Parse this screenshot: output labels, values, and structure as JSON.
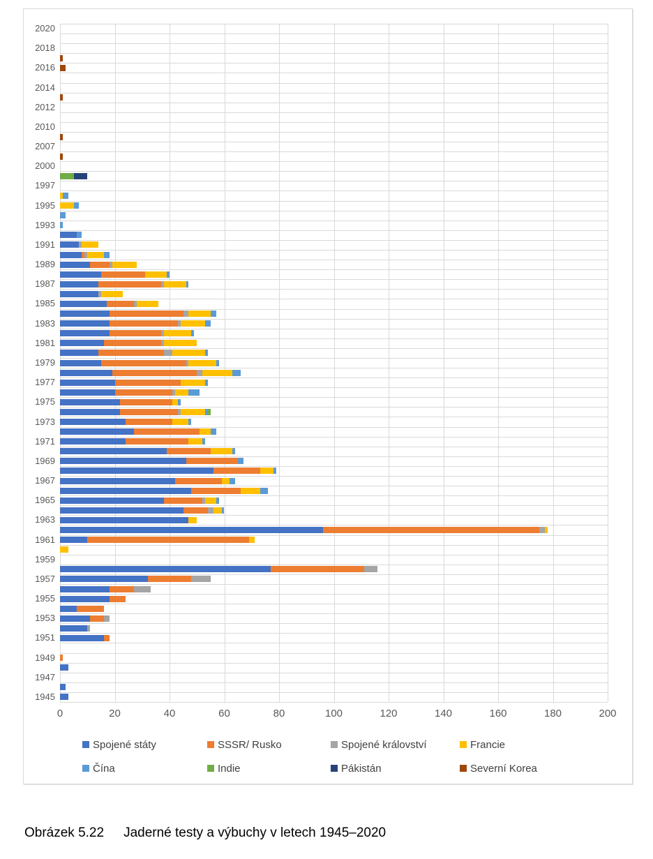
{
  "figure": {
    "caption_label": "Obrázek 5.22",
    "caption_text": "Jaderné testy a výbuchy v letech 1945–2020"
  },
  "colors": {
    "gridline": "#d9d9d9",
    "axis_text": "#595959",
    "legend_text": "#404040"
  },
  "chart_data": {
    "type": "bar",
    "orientation": "horizontal",
    "stacked": true,
    "title": "",
    "xlabel": "",
    "ylabel": "",
    "xlim": [
      0,
      200
    ],
    "x_ticks": [
      0,
      20,
      40,
      60,
      80,
      100,
      120,
      140,
      160,
      180,
      200
    ],
    "grid": true,
    "legend_position": "bottom",
    "y_tick_labels": [
      "2020",
      "2018",
      "2016",
      "2014",
      "2012",
      "2010",
      "2007",
      "2000",
      "1997",
      "1995",
      "1993",
      "1991",
      "1989",
      "1987",
      "1985",
      "1983",
      "1981",
      "1979",
      "1977",
      "1975",
      "1973",
      "1971",
      "1969",
      "1967",
      "1965",
      "1963",
      "1961",
      "1959",
      "1957",
      "1955",
      "1953",
      "1951",
      "1949",
      "1947",
      "1945"
    ],
    "categories_top_to_bottom": [
      "2020",
      "2019",
      "2018",
      "2017",
      "2016",
      "2015",
      "2014",
      "2013",
      "2012",
      "2011",
      "2010",
      "2009",
      "2007",
      "2006",
      "2000",
      "1998",
      "1997",
      "1996",
      "1995",
      "1994",
      "1993",
      "1992",
      "1991",
      "1990",
      "1989",
      "1988",
      "1987",
      "1986",
      "1985",
      "1984",
      "1983",
      "1982",
      "1981",
      "1980",
      "1979",
      "1978",
      "1977",
      "1976",
      "1975",
      "1974",
      "1973",
      "1972",
      "1971",
      "1970",
      "1969",
      "1968",
      "1967",
      "1966",
      "1965",
      "1964",
      "1963",
      "1962",
      "1961",
      "1960",
      "1959",
      "1958",
      "1957",
      "1956",
      "1955",
      "1954",
      "1953",
      "1952",
      "1951",
      "1950",
      "1949",
      "1948",
      "1947",
      "1946",
      "1945"
    ],
    "series": [
      {
        "name": "Spojené státy",
        "color": "#4472C4",
        "values_by_year": {
          "1945": 3,
          "1946": 2,
          "1948": 3,
          "1951": 16,
          "1952": 10,
          "1953": 11,
          "1954": 6,
          "1955": 18,
          "1956": 18,
          "1957": 32,
          "1958": 77,
          "1961": 10,
          "1962": 96,
          "1963": 47,
          "1964": 45,
          "1965": 38,
          "1966": 48,
          "1967": 42,
          "1968": 56,
          "1969": 46,
          "1970": 39,
          "1971": 24,
          "1972": 27,
          "1973": 24,
          "1974": 22,
          "1975": 22,
          "1976": 20,
          "1977": 20,
          "1978": 19,
          "1979": 15,
          "1980": 14,
          "1981": 16,
          "1982": 18,
          "1983": 18,
          "1984": 18,
          "1985": 17,
          "1986": 14,
          "1987": 14,
          "1988": 15,
          "1989": 11,
          "1990": 8,
          "1991": 7,
          "1992": 6
        }
      },
      {
        "name": "SSSR/ Rusko",
        "color": "#ED7D31",
        "values_by_year": {
          "1949": 1,
          "1951": 2,
          "1953": 5,
          "1954": 10,
          "1955": 6,
          "1956": 9,
          "1957": 16,
          "1958": 34,
          "1961": 59,
          "1962": 79,
          "1964": 9,
          "1965": 14,
          "1966": 18,
          "1967": 17,
          "1968": 17,
          "1969": 19,
          "1970": 16,
          "1971": 23,
          "1972": 24,
          "1973": 17,
          "1974": 21,
          "1975": 19,
          "1976": 21,
          "1977": 24,
          "1978": 31,
          "1979": 31,
          "1980": 24,
          "1981": 21,
          "1982": 19,
          "1983": 25,
          "1984": 27,
          "1985": 10,
          "1987": 23,
          "1988": 16,
          "1989": 7,
          "1990": 1
        }
      },
      {
        "name": "Spojené království",
        "color": "#A5A5A5",
        "values_by_year": {
          "1952": 1,
          "1953": 2,
          "1956": 6,
          "1957": 7,
          "1958": 5,
          "1962": 2,
          "1964": 2,
          "1965": 1,
          "1974": 1,
          "1976": 1,
          "1978": 2,
          "1979": 1,
          "1980": 3,
          "1981": 1,
          "1982": 1,
          "1983": 1,
          "1984": 2,
          "1985": 1,
          "1986": 1,
          "1987": 1,
          "1989": 1,
          "1990": 1,
          "1991": 1
        }
      },
      {
        "name": "Francie",
        "color": "#FFC000",
        "values_by_year": {
          "1960": 3,
          "1961": 2,
          "1962": 1,
          "1963": 3,
          "1964": 3,
          "1965": 4,
          "1966": 7,
          "1967": 3,
          "1968": 5,
          "1970": 8,
          "1971": 5,
          "1972": 4,
          "1973": 6,
          "1974": 9,
          "1975": 2,
          "1976": 5,
          "1977": 9,
          "1978": 11,
          "1979": 10,
          "1980": 12,
          "1981": 12,
          "1982": 10,
          "1983": 9,
          "1984": 8,
          "1985": 8,
          "1986": 8,
          "1987": 8,
          "1988": 8,
          "1989": 9,
          "1990": 6,
          "1991": 6,
          "1995": 5,
          "1996": 1
        }
      },
      {
        "name": "Čína",
        "color": "#5B9BD5",
        "values_by_year": {
          "1964": 1,
          "1965": 1,
          "1966": 3,
          "1967": 2,
          "1968": 1,
          "1969": 2,
          "1970": 1,
          "1971": 1,
          "1972": 2,
          "1973": 1,
          "1974": 1,
          "1975": 1,
          "1976": 4,
          "1977": 1,
          "1978": 3,
          "1979": 1,
          "1980": 1,
          "1982": 1,
          "1983": 2,
          "1984": 2,
          "1987": 1,
          "1988": 1,
          "1990": 2,
          "1992": 2,
          "1993": 1,
          "1994": 2,
          "1995": 2,
          "1996": 2
        }
      },
      {
        "name": "Indie",
        "color": "#70AD47",
        "values_by_year": {
          "1974": 1,
          "1998": 5
        }
      },
      {
        "name": "Pákistán",
        "color": "#264478",
        "values_by_year": {
          "1998": 5
        }
      },
      {
        "name": "Severní Korea",
        "color": "#9E480E",
        "values_by_year": {
          "2006": 1,
          "2009": 1,
          "2013": 1,
          "2016": 2,
          "2017": 1
        }
      }
    ]
  }
}
